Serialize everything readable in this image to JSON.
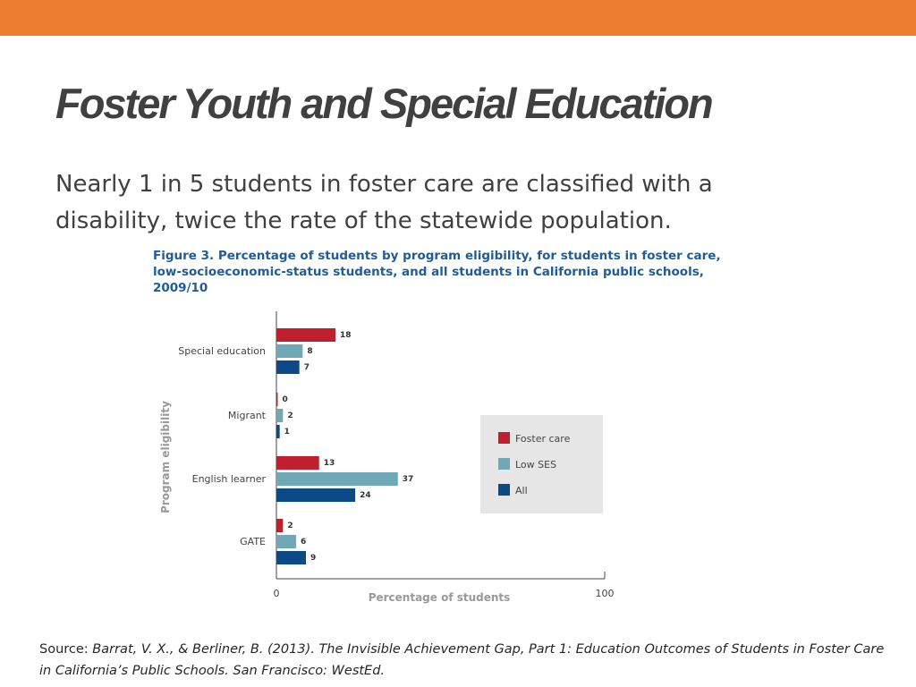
{
  "slide": {
    "title": "Foster Youth and Special Education",
    "subtitle": "Nearly 1 in 5 students in foster care are classified with a disability, twice the rate of the statewide population.",
    "source_prefix": "Source: ",
    "source_citation": "Barrat, V. X., & Berliner, B. (2013). The Invisible Achievement Gap, Part 1: Education Outcomes of Students in Foster Care in California’s Public Schools. San Francisco: WestEd."
  },
  "colors": {
    "top_bar": "#ED7D31",
    "title_text": "#404040",
    "figure_title": "#1F5C99",
    "legend_bg": "#E6E6E6"
  },
  "chart_data": {
    "type": "bar",
    "orientation": "horizontal",
    "title_lines": [
      "Figure 3. Percentage of students by program eligibility, for students in foster care,",
      "low-socioeconomic-status students, and all students in California public schools,",
      "2009/10"
    ],
    "categories": [
      "Special education",
      "Migrant",
      "English learner",
      "GATE"
    ],
    "series": [
      {
        "name": "Foster care",
        "color": "#C0202E",
        "values": [
          18,
          0,
          13,
          2
        ]
      },
      {
        "name": "Low SES",
        "color": "#6FA9B8",
        "values": [
          8,
          2,
          37,
          6
        ]
      },
      {
        "name": "All",
        "color": "#0B4A86",
        "values": [
          7,
          1,
          24,
          9
        ]
      }
    ],
    "xlabel": "Percentage of students",
    "ylabel": "Program eligibility",
    "xlim": [
      0,
      100
    ],
    "xticks": [
      "0",
      "100"
    ],
    "grid": false,
    "legend_position": "right"
  }
}
